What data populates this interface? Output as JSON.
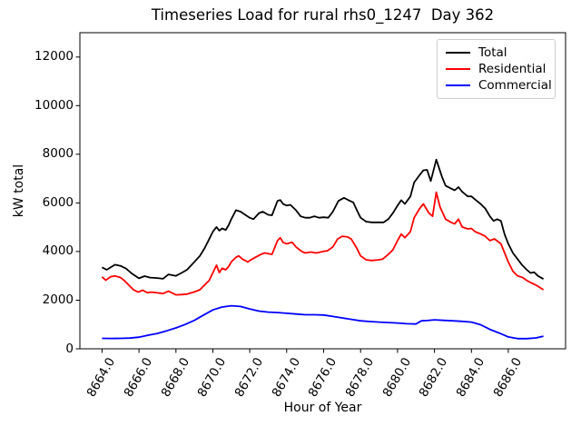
{
  "title": "Timeseries Load for rural rhs0_1247  Day 362",
  "chart_data": {
    "type": "line",
    "title": "Timeseries Load for rural rhs0_1247  Day 362",
    "xlabel": "Hour of Year",
    "ylabel": "kW total",
    "xlim": [
      8662.8,
      8689.1
    ],
    "ylim": [
      0,
      13000
    ],
    "grid": false,
    "legend_position": "upper right",
    "xticks": [
      8664,
      8666,
      8668,
      8670,
      8672,
      8674,
      8676,
      8678,
      8680,
      8682,
      8684,
      8686
    ],
    "xtick_labels": [
      "8664.0",
      "8666.0",
      "8668.0",
      "8670.0",
      "8672.0",
      "8674.0",
      "8676.0",
      "8678.0",
      "8680.0",
      "8682.0",
      "8684.0",
      "8686.0"
    ],
    "yticks": [
      0,
      2000,
      4000,
      6000,
      8000,
      10000,
      12000
    ],
    "ytick_labels": [
      "0",
      "2000",
      "4000",
      "6000",
      "8000",
      "10000",
      "12000"
    ],
    "series": [
      {
        "name": "Total",
        "color": "#000000",
        "points": [
          [
            8664.0,
            3350
          ],
          [
            8664.25,
            3250
          ],
          [
            8664.7,
            3460
          ],
          [
            8665.0,
            3410
          ],
          [
            8665.3,
            3300
          ],
          [
            8665.6,
            3100
          ],
          [
            8666.0,
            2900
          ],
          [
            8666.3,
            2990
          ],
          [
            8666.6,
            2930
          ],
          [
            8667.0,
            2910
          ],
          [
            8667.3,
            2880
          ],
          [
            8667.6,
            3060
          ],
          [
            8668.0,
            3000
          ],
          [
            8668.3,
            3120
          ],
          [
            8668.6,
            3250
          ],
          [
            8669.0,
            3570
          ],
          [
            8669.3,
            3820
          ],
          [
            8669.55,
            4130
          ],
          [
            8669.8,
            4510
          ],
          [
            8670.0,
            4820
          ],
          [
            8670.2,
            5010
          ],
          [
            8670.35,
            4860
          ],
          [
            8670.5,
            4950
          ],
          [
            8670.7,
            4890
          ],
          [
            8670.85,
            5080
          ],
          [
            8671.0,
            5330
          ],
          [
            8671.25,
            5700
          ],
          [
            8671.5,
            5640
          ],
          [
            8671.75,
            5510
          ],
          [
            8672.0,
            5390
          ],
          [
            8672.2,
            5330
          ],
          [
            8672.5,
            5580
          ],
          [
            8672.7,
            5640
          ],
          [
            8673.0,
            5510
          ],
          [
            8673.2,
            5490
          ],
          [
            8673.5,
            6080
          ],
          [
            8673.65,
            6120
          ],
          [
            8673.8,
            5960
          ],
          [
            8674.0,
            5890
          ],
          [
            8674.2,
            5920
          ],
          [
            8674.5,
            5700
          ],
          [
            8674.75,
            5450
          ],
          [
            8675.0,
            5390
          ],
          [
            8675.25,
            5390
          ],
          [
            8675.5,
            5450
          ],
          [
            8675.75,
            5390
          ],
          [
            8676.0,
            5410
          ],
          [
            8676.25,
            5390
          ],
          [
            8676.5,
            5640
          ],
          [
            8676.8,
            6080
          ],
          [
            8677.1,
            6210
          ],
          [
            8677.35,
            6110
          ],
          [
            8677.6,
            6020
          ],
          [
            8677.8,
            5700
          ],
          [
            8678.0,
            5390
          ],
          [
            8678.3,
            5230
          ],
          [
            8678.6,
            5200
          ],
          [
            8679.0,
            5200
          ],
          [
            8679.25,
            5200
          ],
          [
            8679.5,
            5330
          ],
          [
            8679.75,
            5580
          ],
          [
            8680.0,
            5890
          ],
          [
            8680.2,
            6110
          ],
          [
            8680.4,
            5960
          ],
          [
            8680.7,
            6270
          ],
          [
            8680.9,
            6840
          ],
          [
            8681.2,
            7150
          ],
          [
            8681.4,
            7340
          ],
          [
            8681.6,
            7360
          ],
          [
            8681.8,
            6900
          ],
          [
            8682.1,
            7780
          ],
          [
            8682.4,
            7090
          ],
          [
            8682.6,
            6710
          ],
          [
            8682.9,
            6590
          ],
          [
            8683.1,
            6520
          ],
          [
            8683.3,
            6650
          ],
          [
            8683.5,
            6460
          ],
          [
            8683.8,
            6270
          ],
          [
            8684.0,
            6270
          ],
          [
            8684.2,
            6140
          ],
          [
            8684.5,
            5960
          ],
          [
            8684.75,
            5770
          ],
          [
            8685.0,
            5450
          ],
          [
            8685.2,
            5260
          ],
          [
            8685.4,
            5330
          ],
          [
            8685.6,
            5260
          ],
          [
            8685.8,
            4700
          ],
          [
            8686.0,
            4320
          ],
          [
            8686.25,
            3940
          ],
          [
            8686.5,
            3690
          ],
          [
            8686.75,
            3440
          ],
          [
            8687.0,
            3250
          ],
          [
            8687.2,
            3120
          ],
          [
            8687.4,
            3150
          ],
          [
            8687.6,
            3000
          ],
          [
            8687.9,
            2870
          ]
        ]
      },
      {
        "name": "Residential",
        "color": "#ff0000",
        "points": [
          [
            8664.0,
            2960
          ],
          [
            8664.2,
            2820
          ],
          [
            8664.45,
            2960
          ],
          [
            8664.7,
            3000
          ],
          [
            8665.0,
            2930
          ],
          [
            8665.2,
            2810
          ],
          [
            8665.45,
            2620
          ],
          [
            8665.7,
            2430
          ],
          [
            8665.95,
            2330
          ],
          [
            8666.2,
            2410
          ],
          [
            8666.45,
            2310
          ],
          [
            8666.7,
            2330
          ],
          [
            8667.0,
            2300
          ],
          [
            8667.3,
            2270
          ],
          [
            8667.6,
            2370
          ],
          [
            8668.0,
            2220
          ],
          [
            8668.3,
            2230
          ],
          [
            8668.6,
            2250
          ],
          [
            8669.0,
            2340
          ],
          [
            8669.3,
            2430
          ],
          [
            8669.55,
            2620
          ],
          [
            8669.8,
            2810
          ],
          [
            8670.0,
            3130
          ],
          [
            8670.2,
            3440
          ],
          [
            8670.35,
            3130
          ],
          [
            8670.5,
            3310
          ],
          [
            8670.7,
            3250
          ],
          [
            8670.85,
            3380
          ],
          [
            8671.0,
            3570
          ],
          [
            8671.25,
            3760
          ],
          [
            8671.4,
            3820
          ],
          [
            8671.6,
            3690
          ],
          [
            8671.9,
            3570
          ],
          [
            8672.0,
            3630
          ],
          [
            8672.3,
            3760
          ],
          [
            8672.6,
            3880
          ],
          [
            8672.8,
            3940
          ],
          [
            8673.0,
            3910
          ],
          [
            8673.2,
            3880
          ],
          [
            8673.5,
            4450
          ],
          [
            8673.65,
            4570
          ],
          [
            8673.8,
            4380
          ],
          [
            8674.0,
            4320
          ],
          [
            8674.3,
            4380
          ],
          [
            8674.5,
            4190
          ],
          [
            8674.8,
            4010
          ],
          [
            8675.0,
            3940
          ],
          [
            8675.3,
            3980
          ],
          [
            8675.6,
            3940
          ],
          [
            8676.0,
            4010
          ],
          [
            8676.2,
            4030
          ],
          [
            8676.5,
            4190
          ],
          [
            8676.75,
            4510
          ],
          [
            8677.0,
            4630
          ],
          [
            8677.3,
            4600
          ],
          [
            8677.5,
            4510
          ],
          [
            8677.8,
            4130
          ],
          [
            8678.0,
            3820
          ],
          [
            8678.3,
            3660
          ],
          [
            8678.6,
            3630
          ],
          [
            8679.0,
            3660
          ],
          [
            8679.2,
            3690
          ],
          [
            8679.5,
            3880
          ],
          [
            8679.75,
            4070
          ],
          [
            8680.0,
            4450
          ],
          [
            8680.2,
            4720
          ],
          [
            8680.4,
            4570
          ],
          [
            8680.7,
            4820
          ],
          [
            8680.9,
            5390
          ],
          [
            8681.2,
            5770
          ],
          [
            8681.4,
            5960
          ],
          [
            8681.7,
            5580
          ],
          [
            8681.9,
            5450
          ],
          [
            8682.1,
            6440
          ],
          [
            8682.3,
            5830
          ],
          [
            8682.6,
            5330
          ],
          [
            8682.9,
            5200
          ],
          [
            8683.1,
            5140
          ],
          [
            8683.3,
            5330
          ],
          [
            8683.5,
            5010
          ],
          [
            8683.8,
            4930
          ],
          [
            8684.0,
            4950
          ],
          [
            8684.2,
            4820
          ],
          [
            8684.5,
            4720
          ],
          [
            8684.75,
            4630
          ],
          [
            8685.0,
            4450
          ],
          [
            8685.25,
            4520
          ],
          [
            8685.6,
            4320
          ],
          [
            8685.8,
            3940
          ],
          [
            8686.0,
            3570
          ],
          [
            8686.25,
            3190
          ],
          [
            8686.5,
            3000
          ],
          [
            8686.75,
            2940
          ],
          [
            8687.0,
            2810
          ],
          [
            8687.25,
            2710
          ],
          [
            8687.5,
            2620
          ],
          [
            8687.9,
            2430
          ]
        ]
      },
      {
        "name": "Commercial",
        "color": "#0000ff",
        "points": [
          [
            8664.0,
            430
          ],
          [
            8664.5,
            425
          ],
          [
            8665.0,
            430
          ],
          [
            8665.5,
            440
          ],
          [
            8666.0,
            480
          ],
          [
            8666.5,
            560
          ],
          [
            8667.0,
            630
          ],
          [
            8667.5,
            740
          ],
          [
            8668.0,
            860
          ],
          [
            8668.5,
            1000
          ],
          [
            8669.0,
            1170
          ],
          [
            8669.5,
            1390
          ],
          [
            8670.0,
            1600
          ],
          [
            8670.5,
            1720
          ],
          [
            8671.0,
            1770
          ],
          [
            8671.5,
            1740
          ],
          [
            8672.0,
            1640
          ],
          [
            8672.5,
            1550
          ],
          [
            8673.0,
            1510
          ],
          [
            8673.5,
            1490
          ],
          [
            8674.0,
            1460
          ],
          [
            8674.5,
            1430
          ],
          [
            8675.0,
            1400
          ],
          [
            8675.5,
            1400
          ],
          [
            8676.0,
            1390
          ],
          [
            8676.5,
            1330
          ],
          [
            8677.0,
            1270
          ],
          [
            8677.5,
            1210
          ],
          [
            8678.0,
            1150
          ],
          [
            8678.5,
            1120
          ],
          [
            8679.0,
            1100
          ],
          [
            8679.5,
            1080
          ],
          [
            8680.0,
            1060
          ],
          [
            8680.5,
            1030
          ],
          [
            8681.0,
            1020
          ],
          [
            8681.3,
            1150
          ],
          [
            8681.6,
            1160
          ],
          [
            8682.0,
            1190
          ],
          [
            8682.5,
            1170
          ],
          [
            8683.0,
            1150
          ],
          [
            8683.5,
            1130
          ],
          [
            8684.0,
            1100
          ],
          [
            8684.5,
            990
          ],
          [
            8685.0,
            800
          ],
          [
            8685.5,
            650
          ],
          [
            8686.0,
            490
          ],
          [
            8686.5,
            420
          ],
          [
            8687.0,
            420
          ],
          [
            8687.5,
            450
          ],
          [
            8687.9,
            520
          ]
        ]
      }
    ]
  },
  "legend": {
    "items": [
      {
        "label": "Total",
        "color": "#000000"
      },
      {
        "label": "Residential",
        "color": "#ff0000"
      },
      {
        "label": "Commercial",
        "color": "#0000ff"
      }
    ]
  }
}
